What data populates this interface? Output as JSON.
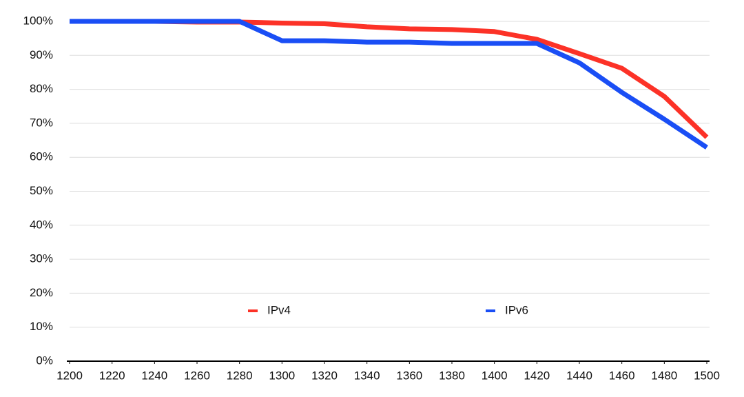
{
  "chart_data": {
    "type": "line",
    "x": [
      1200,
      1220,
      1240,
      1260,
      1280,
      1300,
      1320,
      1340,
      1360,
      1380,
      1400,
      1420,
      1440,
      1460,
      1480,
      1500
    ],
    "series": [
      {
        "name": "IPv4",
        "color": "#fc3227",
        "values": [
          100,
          100,
          100,
          99.8,
          99.8,
          99.5,
          99.3,
          98.4,
          97.8,
          97.6,
          97,
          94.7,
          90.5,
          86.2,
          77.9,
          65.9
        ]
      },
      {
        "name": "IPv6",
        "color": "#1a4ef5",
        "values": [
          100,
          100,
          100,
          100,
          100,
          94.3,
          94.3,
          93.9,
          93.9,
          93.5,
          93.5,
          93.5,
          87.8,
          79.1,
          71.2,
          62.9
        ]
      }
    ],
    "xlim": [
      1200,
      1500
    ],
    "xticks": [
      1200,
      1220,
      1240,
      1260,
      1280,
      1300,
      1320,
      1340,
      1360,
      1380,
      1400,
      1420,
      1440,
      1460,
      1480,
      1500
    ],
    "ylim": [
      0,
      100
    ],
    "yticks": [
      {
        "value": 0,
        "label": "0%"
      },
      {
        "value": 10,
        "label": "10%"
      },
      {
        "value": 20,
        "label": "20%"
      },
      {
        "value": 30,
        "label": "30%"
      },
      {
        "value": 40,
        "label": "40%"
      },
      {
        "value": 50,
        "label": "50%"
      },
      {
        "value": 60,
        "label": "60%"
      },
      {
        "value": 70,
        "label": "70%"
      },
      {
        "value": 80,
        "label": "80%"
      },
      {
        "value": 90,
        "label": "90%"
      },
      {
        "value": 100,
        "label": "100%"
      }
    ],
    "grid": true,
    "legend": "bottom"
  }
}
